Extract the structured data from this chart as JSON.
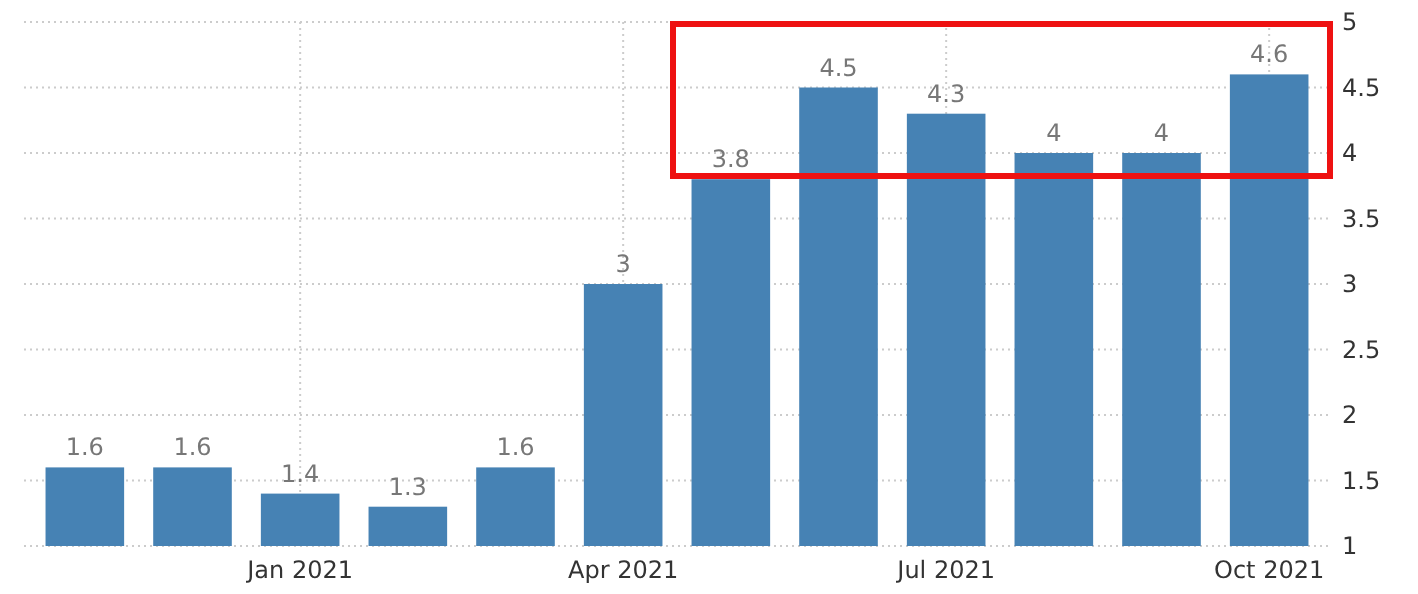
{
  "chart_data": {
    "type": "bar",
    "categories": [
      null,
      null,
      "Jan 2021",
      null,
      null,
      "Apr 2021",
      null,
      null,
      "Jul 2021",
      null,
      null,
      "Oct 2021"
    ],
    "values": [
      1.6,
      1.6,
      1.4,
      1.3,
      1.6,
      3,
      3.8,
      4.5,
      4.3,
      4,
      4,
      4.6
    ],
    "color": "#4682b4",
    "ylim": [
      1,
      5
    ],
    "yticks": [
      1,
      1.5,
      2,
      2.5,
      3,
      3.5,
      4,
      4.5,
      5
    ],
    "grid": true,
    "data_labels": true
  }
}
